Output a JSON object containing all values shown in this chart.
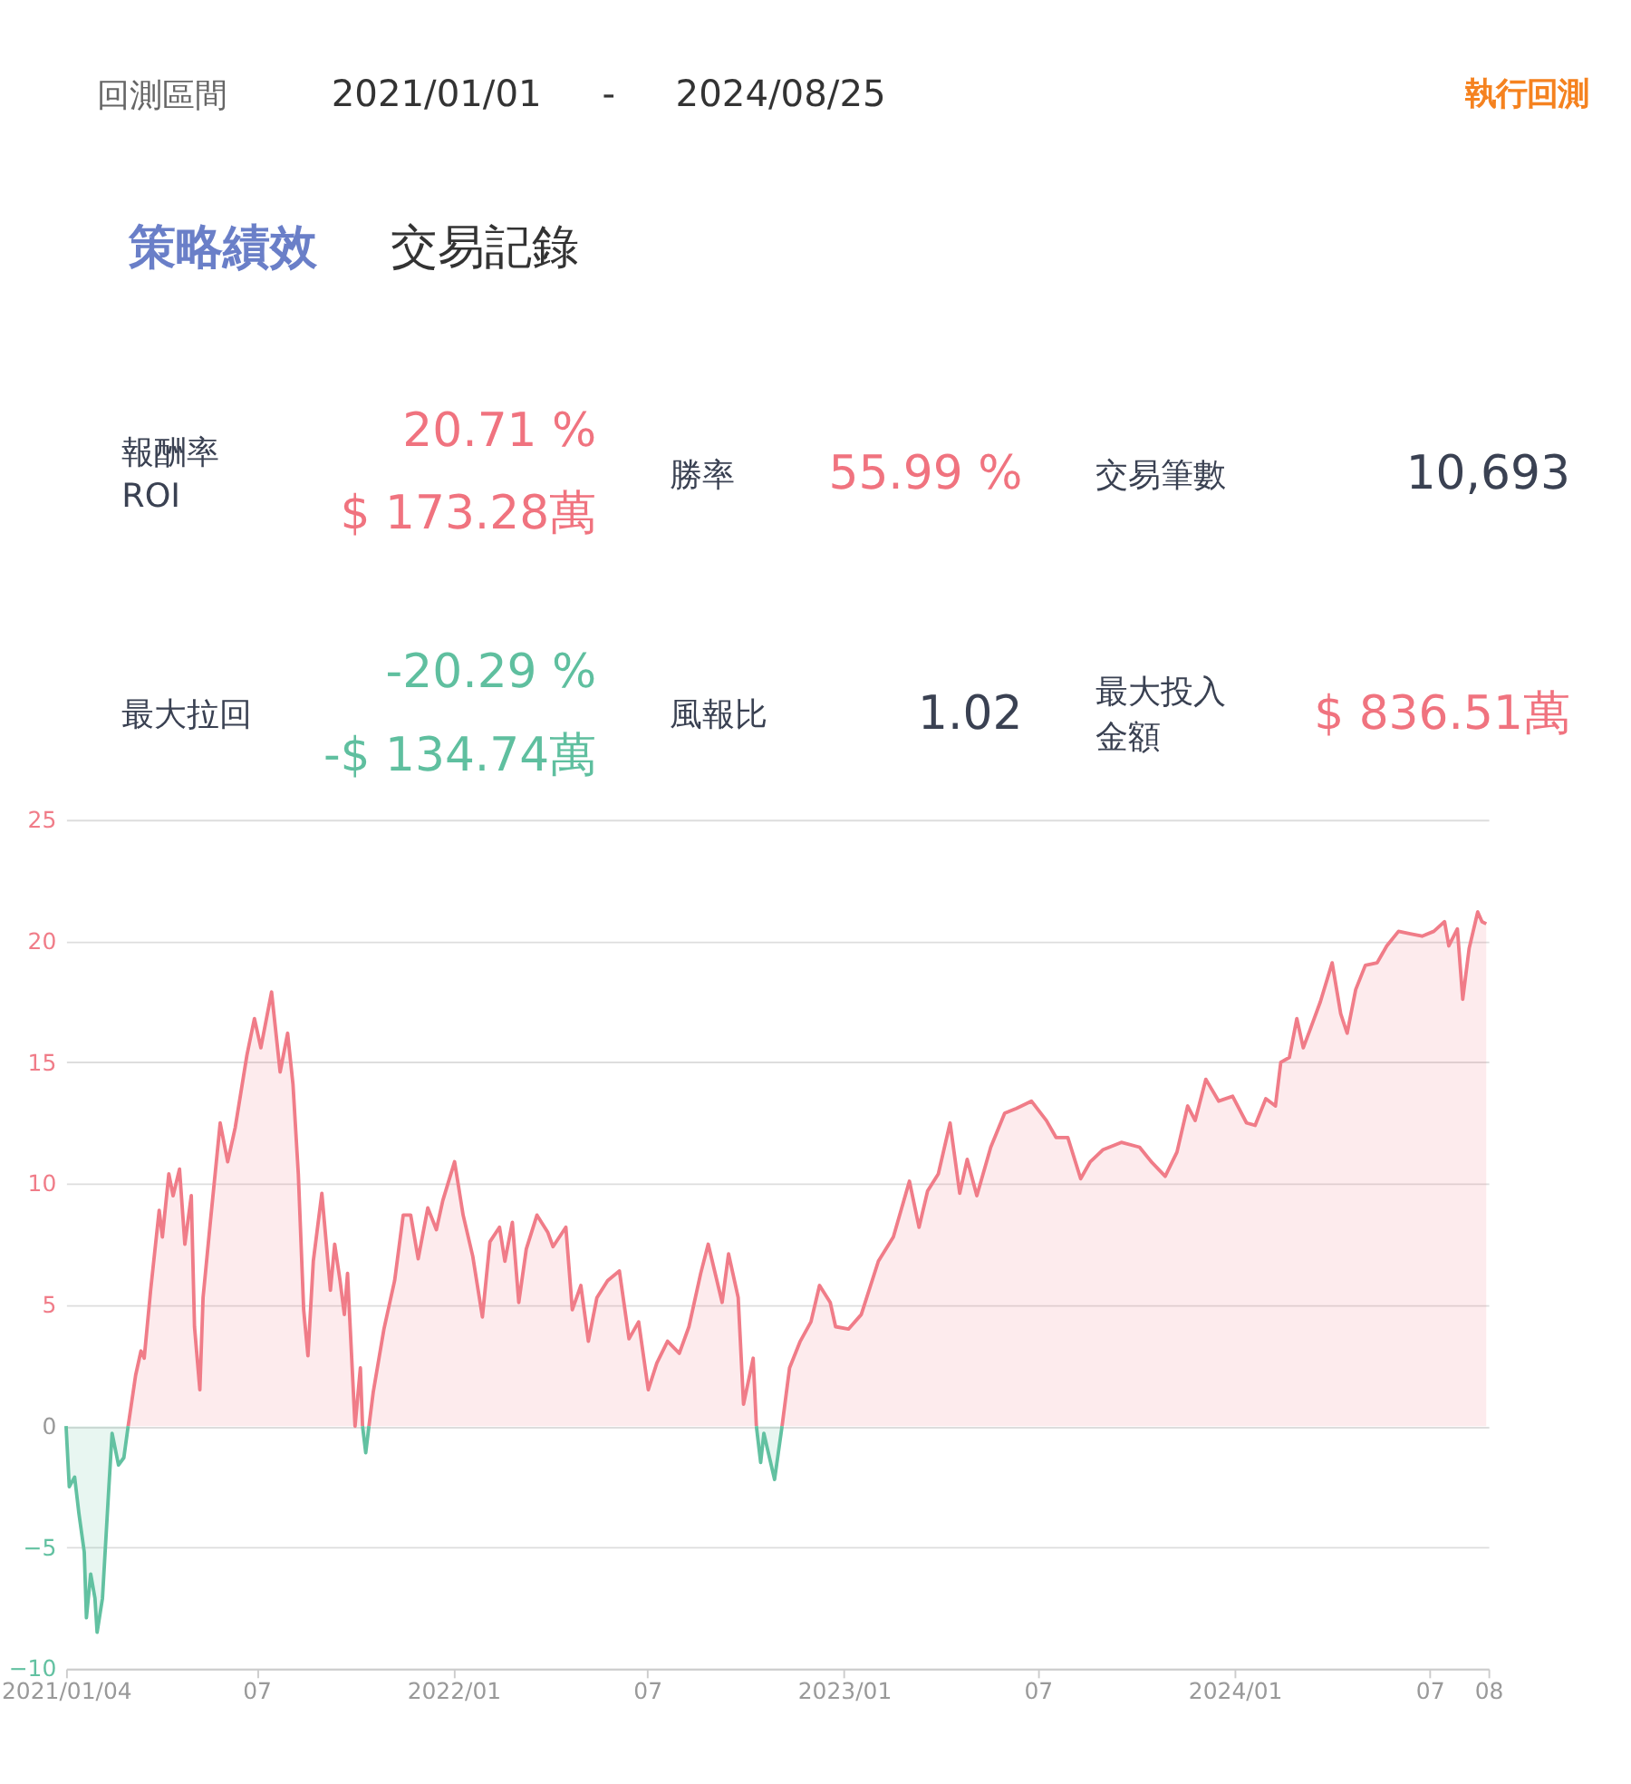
{
  "chart_data": [
    {
      "type": "other",
      "annotations": [
        "回測區間",
        "2021/01/01",
        "-",
        "2024/08/25",
        "執行回測",
        "策略績效",
        "交易記錄",
        "報酬率",
        "ROI",
        "20.71 %",
        "$ 173.28萬",
        "勝率",
        "55.99 %",
        "交易筆數",
        "10,693",
        "最大拉回",
        "-20.29 %",
        "-$ 134.74萬",
        "風報比",
        "1.02",
        "最大投入",
        "金額",
        "$ 836.51萬"
      ]
    },
    {
      "type": "area",
      "x": [
        "2021-01-04",
        "2021-01-07",
        "2021-01-12",
        "2021-01-16",
        "2021-01-21",
        "2021-01-23",
        "2021-01-27",
        "2021-01-31",
        "2021-02-02",
        "2021-02-07",
        "2021-02-13",
        "2021-02-16",
        "2021-02-22",
        "2021-02-27",
        "2021-03-03",
        "2021-03-10",
        "2021-03-15",
        "2021-03-18",
        "2021-03-24",
        "2021-04-01",
        "2021-04-04",
        "2021-04-10",
        "2021-04-14",
        "2021-04-20",
        "2021-04-25",
        "2021-05-01",
        "2021-05-04",
        "2021-05-09",
        "2021-05-12",
        "2021-05-19",
        "2021-05-28",
        "2021-06-04",
        "2021-06-11",
        "2021-06-22",
        "2021-06-29",
        "2021-07-05",
        "2021-07-15",
        "2021-07-23",
        "2021-07-30",
        "2021-08-04",
        "2021-08-09",
        "2021-08-14",
        "2021-08-18",
        "2021-08-23",
        "2021-08-31",
        "2021-09-08",
        "2021-09-12",
        "2021-09-17",
        "2021-09-21",
        "2021-09-24",
        "2021-10-01",
        "2021-10-06",
        "2021-10-08",
        "2021-10-11",
        "2021-10-14",
        "2021-10-18",
        "2021-10-28",
        "2021-11-07",
        "2021-11-15",
        "2021-11-22",
        "2021-11-29",
        "2021-12-08",
        "2021-12-16",
        "2021-12-22",
        "2022-01-02",
        "2022-01-10",
        "2022-01-19",
        "2022-01-28",
        "2022-02-04",
        "2022-02-13",
        "2022-02-18",
        "2022-02-25",
        "2022-03-03",
        "2022-03-10",
        "2022-03-20",
        "2022-03-30",
        "2022-04-04",
        "2022-04-16",
        "2022-04-22",
        "2022-04-30",
        "2022-05-07",
        "2022-05-15",
        "2022-05-25",
        "2022-06-05",
        "2022-06-14",
        "2022-06-23",
        "2022-07-02",
        "2022-07-10",
        "2022-07-20",
        "2022-07-31",
        "2022-08-09",
        "2022-08-20",
        "2022-08-27",
        "2022-09-09",
        "2022-09-15",
        "2022-09-24",
        "2022-09-29",
        "2022-10-08",
        "2022-10-11",
        "2022-10-15",
        "2022-10-18",
        "2022-10-28",
        "2022-11-04",
        "2022-11-11",
        "2022-11-21",
        "2022-12-01",
        "2022-12-09",
        "2022-12-19",
        "2022-12-24",
        "2023-01-05",
        "2023-01-17",
        "2023-02-02",
        "2023-02-16",
        "2023-03-03",
        "2023-03-12",
        "2023-03-20",
        "2023-03-30",
        "2023-04-10",
        "2023-04-19",
        "2023-04-26",
        "2023-05-05",
        "2023-05-18",
        "2023-05-31",
        "2023-06-11",
        "2023-06-25",
        "2023-07-09",
        "2023-07-18",
        "2023-07-29",
        "2023-08-10",
        "2023-08-19",
        "2023-08-31",
        "2023-09-17",
        "2023-10-04",
        "2023-10-15",
        "2023-10-28",
        "2023-11-08",
        "2023-11-18",
        "2023-11-25",
        "2023-12-05",
        "2023-12-17",
        "2023-12-30",
        "2024-01-12",
        "2024-01-20",
        "2024-01-30",
        "2024-02-08",
        "2024-02-13",
        "2024-02-21",
        "2024-02-28",
        "2024-03-05",
        "2024-03-11",
        "2024-03-21",
        "2024-04-01",
        "2024-04-09",
        "2024-04-15",
        "2024-04-23",
        "2024-05-02",
        "2024-05-13",
        "2024-05-22",
        "2024-06-02",
        "2024-06-13",
        "2024-06-24",
        "2024-07-05",
        "2024-07-15",
        "2024-07-19",
        "2024-07-27",
        "2024-08-01",
        "2024-08-07",
        "2024-08-15",
        "2024-08-19",
        "2024-08-23"
      ],
      "series": [
        {
          "color": "#f07c88",
          "values": [
            null,
            null,
            null,
            null,
            null,
            null,
            null,
            null,
            null,
            null,
            null,
            null,
            null,
            null,
            0,
            2.1,
            3.1,
            2.8,
            5.6,
            8.9,
            7.8,
            10.4,
            9.5,
            10.6,
            7.5,
            9.5,
            4.1,
            1.5,
            5.3,
            8.5,
            12.5,
            10.9,
            12.3,
            15.3,
            16.8,
            15.6,
            17.9,
            14.6,
            16.2,
            14.1,
            10.4,
            4.8,
            2.9,
            6.8,
            9.6,
            5.6,
            7.5,
            6.0,
            4.6,
            6.3,
            0,
            2.4,
            0,
            null,
            0,
            1.4,
            4.0,
            6.0,
            8.7,
            8.7,
            6.9,
            9.0,
            8.1,
            9.3,
            10.9,
            8.7,
            7.0,
            4.5,
            7.6,
            8.2,
            6.8,
            8.4,
            5.1,
            7.3,
            8.7,
            8.0,
            7.4,
            8.2,
            4.8,
            5.8,
            3.5,
            5.3,
            6.0,
            6.4,
            3.6,
            4.3,
            1.5,
            2.6,
            3.5,
            3.0,
            4.1,
            6.3,
            7.5,
            5.1,
            7.1,
            5.3,
            0.9,
            2.8,
            0,
            null,
            null,
            null,
            0,
            2.4,
            3.5,
            4.3,
            5.8,
            5.1,
            4.1,
            4.0,
            4.6,
            6.8,
            7.8,
            10.1,
            8.2,
            9.7,
            10.4,
            12.5,
            9.6,
            11.0,
            9.5,
            11.5,
            12.9,
            13.1,
            13.4,
            12.6,
            11.9,
            11.9,
            10.2,
            10.9,
            11.4,
            11.7,
            11.5,
            10.9,
            10.3,
            11.3,
            13.2,
            12.6,
            14.3,
            13.4,
            13.6,
            12.5,
            12.4,
            13.5,
            13.2,
            15.0,
            15.2,
            16.8,
            15.6,
            16.3,
            17.5,
            19.1,
            17.0,
            16.2,
            18.0,
            19.0,
            19.1,
            19.8,
            20.4,
            20.3,
            20.2,
            20.4,
            20.8,
            19.8,
            20.5,
            17.6,
            19.7,
            21.2,
            20.8,
            20.71
          ]
        },
        {
          "color": "#62c1a1",
          "values": [
            0,
            -2.5,
            -2.1,
            -3.6,
            -5.2,
            -7.9,
            -6.1,
            -7.1,
            -8.5,
            -7.1,
            -2.5,
            -0.3,
            -1.6,
            -1.3,
            0,
            null,
            null,
            null,
            null,
            null,
            null,
            null,
            null,
            null,
            null,
            null,
            null,
            null,
            null,
            null,
            null,
            null,
            null,
            null,
            null,
            null,
            null,
            null,
            null,
            null,
            null,
            null,
            null,
            null,
            null,
            null,
            null,
            null,
            null,
            null,
            null,
            null,
            0,
            -1.1,
            0,
            null,
            null,
            null,
            null,
            null,
            null,
            null,
            null,
            null,
            null,
            null,
            null,
            null,
            null,
            null,
            null,
            null,
            null,
            null,
            null,
            null,
            null,
            null,
            null,
            null,
            null,
            null,
            null,
            null,
            null,
            null,
            null,
            null,
            null,
            null,
            null,
            null,
            null,
            null,
            null,
            null,
            null,
            null,
            0,
            -1.5,
            -0.3,
            -2.2,
            0,
            null,
            null,
            null,
            null,
            null,
            null,
            null,
            null,
            null,
            null,
            null,
            null,
            null,
            null,
            null,
            null,
            null,
            null,
            null,
            null,
            null,
            null,
            null,
            null,
            null,
            null,
            null,
            null,
            null,
            null,
            null,
            null,
            null,
            null,
            null,
            null,
            null,
            null,
            null,
            null,
            null,
            null,
            null,
            null,
            null,
            null,
            null,
            null,
            null,
            null,
            null,
            null,
            null,
            null,
            null,
            null,
            null,
            null,
            null,
            null,
            null,
            null,
            null,
            null,
            null,
            null,
            null
          ]
        }
      ],
      "xlim": [
        "2021-01-04",
        "2024-08-25"
      ],
      "xticks": [
        {
          "value": "2021-01-04",
          "label": "2021/01/04"
        },
        {
          "value": "2021-07-01",
          "label": "07"
        },
        {
          "value": "2022-01-01",
          "label": "2022/01"
        },
        {
          "value": "2022-07-01",
          "label": "07"
        },
        {
          "value": "2023-01-01",
          "label": "2023/01"
        },
        {
          "value": "2023-07-01",
          "label": "07"
        },
        {
          "value": "2024-01-01",
          "label": "2024/01"
        },
        {
          "value": "2024-07-01",
          "label": "07"
        },
        {
          "value": "2024-08-25",
          "label": "08"
        }
      ],
      "ylim": [
        -10,
        25
      ],
      "yticks": [
        -10,
        -5,
        0,
        5,
        10,
        15,
        20,
        25
      ],
      "grid": "y"
    }
  ]
}
